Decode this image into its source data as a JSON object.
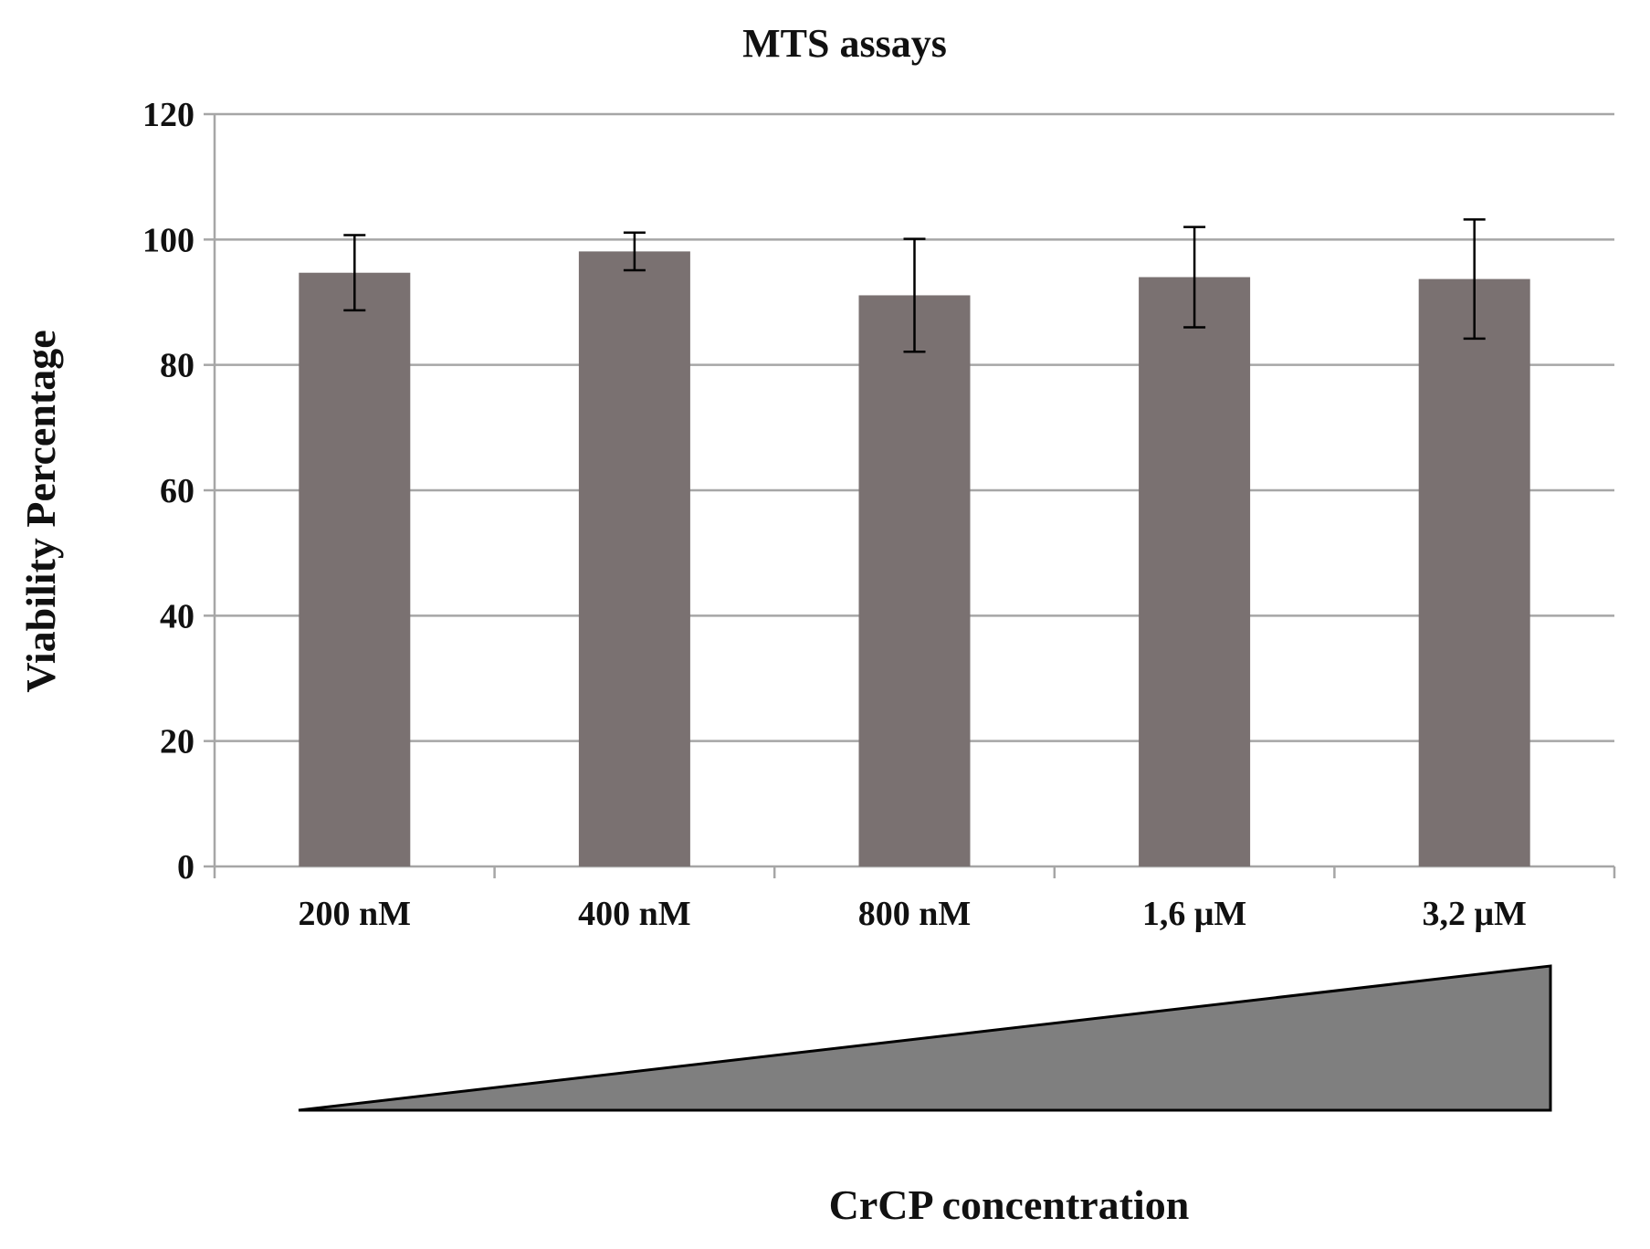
{
  "chart_data": {
    "type": "bar",
    "title": "MTS assays",
    "xlabel": "CrCP concentration",
    "ylabel": "Viability  Percentage",
    "categories": [
      "200 nM",
      "400 nM",
      "800 nM",
      "1,6 μM",
      "3,2 μM"
    ],
    "series": [
      {
        "name": "Viability Percentage",
        "values": [
          94.7,
          98.1,
          91.1,
          94.0,
          93.7
        ],
        "error": [
          6.0,
          3.0,
          9.0,
          8.0,
          9.5
        ]
      }
    ],
    "ylim": [
      0,
      120
    ],
    "yticks": [
      0,
      20,
      40,
      60,
      80,
      100,
      120
    ],
    "grid": true,
    "legend": "none",
    "annotations": [
      "increasing concentration wedge"
    ]
  },
  "colors": {
    "bar": "#7a7171",
    "gridline": "#a6a6a6",
    "axis": "#a6a6a6",
    "error_bar": "#000000",
    "wedge_fill": "#7f7f7f",
    "wedge_stroke": "#000000"
  }
}
